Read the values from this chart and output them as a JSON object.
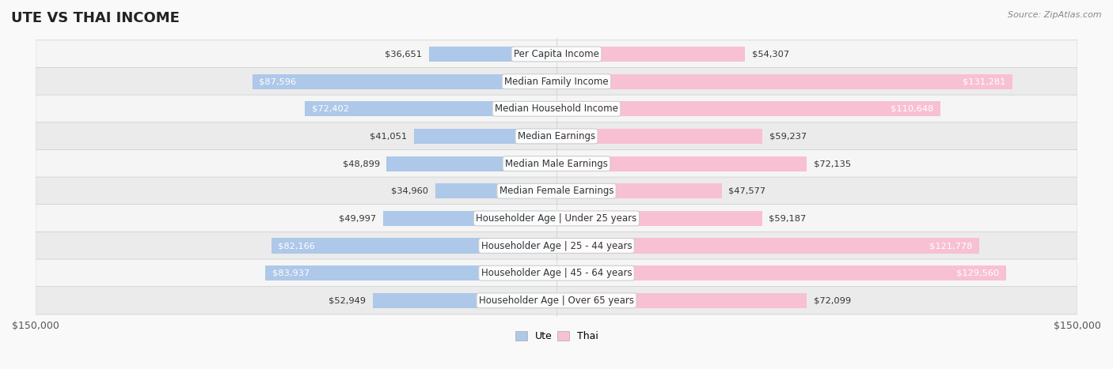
{
  "title": "UTE VS THAI INCOME",
  "source": "Source: ZipAtlas.com",
  "categories": [
    "Per Capita Income",
    "Median Family Income",
    "Median Household Income",
    "Median Earnings",
    "Median Male Earnings",
    "Median Female Earnings",
    "Householder Age | Under 25 years",
    "Householder Age | 25 - 44 years",
    "Householder Age | 45 - 64 years",
    "Householder Age | Over 65 years"
  ],
  "ute_values": [
    36651,
    87596,
    72402,
    41051,
    48899,
    34960,
    49997,
    82166,
    83937,
    52949
  ],
  "thai_values": [
    54307,
    131281,
    110648,
    59237,
    72135,
    47577,
    59187,
    121778,
    129560,
    72099
  ],
  "ute_color": "#7facd6",
  "ute_color_light": "#adc8e8",
  "thai_color": "#f48fb1",
  "thai_color_light": "#f8c0d3",
  "max_val": 150000,
  "bar_height": 0.55,
  "bg_color": "#f0f0f0",
  "row_bg": "#f5f5f5",
  "row_bg_alt": "#ebebeb",
  "label_fontsize": 8.5,
  "title_fontsize": 13,
  "xlabel_fontsize": 9,
  "legend_fontsize": 9,
  "value_fontsize": 8.2
}
